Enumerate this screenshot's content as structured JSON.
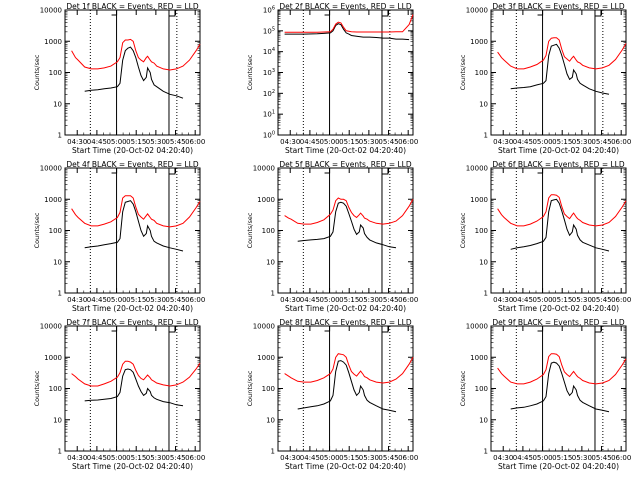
{
  "figure": {
    "panel_count": 9,
    "layout": "3x3 grid",
    "background_color": "#ffffff",
    "frame_color": "#000000"
  },
  "colors": {
    "events": "#000000",
    "lld": "#ff0000",
    "markers": "#000000"
  },
  "shared_axes": {
    "xlabel": "Start Time (20-Oct-02 04:20:40)",
    "ylabel": "Counts/sec",
    "x_tick_labels": [
      "04:30",
      "04:45",
      "05:00",
      "05:15",
      "05:30",
      "05:45",
      "06:00"
    ],
    "x_tick_minutes": [
      9.33,
      24.33,
      39.33,
      54.33,
      69.33,
      84.33,
      99.33
    ],
    "xlim_minutes": [
      0,
      103
    ],
    "yscale": "log",
    "grid": false
  },
  "markers": {
    "dotted_line_times": [
      "04:40",
      "05:46"
    ],
    "solid_line_times": [
      "05:00",
      "05:40"
    ],
    "bracket_labels": [
      "05:00 to 05:40"
    ],
    "bracket_style": "small square corner tick"
  },
  "chart_data": [
    {
      "type": "line",
      "title": "Det 1f BLACK = Events, RED = LLD",
      "ylim": [
        1,
        10000
      ],
      "y_tick_labels": [
        "1",
        "10",
        "100",
        "1000",
        "10000"
      ],
      "x_minutes": [
        5,
        8,
        10,
        15,
        20,
        25,
        30,
        35,
        40,
        42,
        44,
        46,
        48,
        50,
        52,
        54,
        56,
        58,
        60,
        62,
        63,
        65,
        66,
        68,
        70,
        75,
        80,
        85,
        90,
        95,
        100,
        103
      ],
      "series": [
        {
          "name": "BLACK = Events",
          "color": "#000000",
          "values": [
            null,
            null,
            null,
            25,
            27,
            28,
            30,
            32,
            35,
            45,
            250,
            500,
            600,
            650,
            500,
            300,
            150,
            80,
            55,
            70,
            140,
            100,
            60,
            40,
            35,
            25,
            20,
            18,
            15,
            null,
            null,
            null
          ]
        },
        {
          "name": "RED = LLD",
          "color": "#ff0000",
          "values": [
            500,
            300,
            250,
            150,
            130,
            130,
            140,
            160,
            220,
            300,
            900,
            1100,
            1100,
            1150,
            1000,
            500,
            300,
            250,
            220,
            300,
            330,
            250,
            220,
            200,
            160,
            130,
            120,
            130,
            160,
            250,
            500,
            800
          ]
        }
      ]
    },
    {
      "type": "line",
      "title": "Det 2f BLACK = Events, RED = LLD",
      "ylim": [
        1,
        1000000
      ],
      "y_tick_labels": [
        "10^0",
        "10^1",
        "10^2",
        "10^3",
        "10^4",
        "10^5",
        "10^6"
      ],
      "x_minutes": [
        5,
        10,
        20,
        30,
        35,
        40,
        42,
        44,
        46,
        48,
        50,
        52,
        54,
        56,
        60,
        65,
        70,
        75,
        80,
        85,
        90,
        95,
        100,
        103
      ],
      "series": [
        {
          "name": "BLACK = Events",
          "color": "#000000",
          "values": [
            70000,
            70000,
            70000,
            72000,
            75000,
            80000,
            100000,
            180000,
            220000,
            200000,
            120000,
            80000,
            70000,
            60000,
            55000,
            50000,
            50000,
            48000,
            45000,
            45000,
            40000,
            40000,
            38000,
            null
          ]
        },
        {
          "name": "RED = LLD",
          "color": "#ff0000",
          "values": [
            85000,
            85000,
            85000,
            85000,
            88000,
            90000,
            120000,
            210000,
            260000,
            240000,
            150000,
            100000,
            95000,
            90000,
            88000,
            88000,
            88000,
            88000,
            88000,
            88000,
            90000,
            90000,
            200000,
            600000
          ]
        }
      ]
    },
    {
      "type": "line",
      "title": "Det 3f BLACK = Events, RED = LLD",
      "ylim": [
        1,
        10000
      ],
      "y_tick_labels": [
        "1",
        "10",
        "100",
        "1000",
        "10000"
      ],
      "x_minutes": [
        5,
        8,
        10,
        15,
        20,
        25,
        30,
        35,
        40,
        42,
        44,
        46,
        48,
        50,
        52,
        54,
        56,
        58,
        60,
        62,
        63,
        65,
        66,
        68,
        70,
        75,
        80,
        85,
        90,
        95,
        100,
        103
      ],
      "series": [
        {
          "name": "BLACK = Events",
          "color": "#000000",
          "values": [
            null,
            null,
            null,
            30,
            32,
            33,
            35,
            40,
            45,
            55,
            350,
            700,
            750,
            800,
            600,
            350,
            180,
            90,
            60,
            70,
            120,
            90,
            60,
            45,
            40,
            30,
            25,
            22,
            20,
            null,
            null,
            null
          ]
        },
        {
          "name": "RED = LLD",
          "color": "#ff0000",
          "values": [
            450,
            300,
            250,
            160,
            130,
            130,
            150,
            180,
            250,
            350,
            1000,
            1250,
            1300,
            1300,
            1100,
            550,
            320,
            270,
            230,
            300,
            330,
            250,
            220,
            200,
            170,
            140,
            130,
            140,
            170,
            260,
            520,
            850
          ]
        }
      ]
    },
    {
      "type": "line",
      "title": "Det 4f BLACK = Events, RED = LLD",
      "ylim": [
        1,
        10000
      ],
      "y_tick_labels": [
        "1",
        "10",
        "100",
        "1000",
        "10000"
      ],
      "x_minutes": [
        5,
        8,
        10,
        15,
        20,
        25,
        30,
        35,
        40,
        42,
        44,
        46,
        48,
        50,
        52,
        54,
        56,
        58,
        60,
        62,
        63,
        65,
        66,
        68,
        70,
        75,
        80,
        85,
        90,
        95,
        100,
        103
      ],
      "series": [
        {
          "name": "BLACK = Events",
          "color": "#000000",
          "values": [
            null,
            null,
            null,
            28,
            30,
            32,
            35,
            38,
            42,
            55,
            400,
            800,
            850,
            900,
            700,
            400,
            200,
            100,
            65,
            80,
            140,
            100,
            65,
            45,
            40,
            32,
            28,
            25,
            22,
            null,
            null,
            null
          ]
        },
        {
          "name": "RED = LLD",
          "color": "#ff0000",
          "values": [
            500,
            320,
            260,
            170,
            140,
            140,
            160,
            190,
            260,
            380,
            1100,
            1300,
            1300,
            1300,
            1100,
            560,
            330,
            270,
            230,
            300,
            340,
            260,
            230,
            210,
            170,
            140,
            130,
            140,
            170,
            270,
            540,
            850
          ]
        }
      ]
    },
    {
      "type": "line",
      "title": "Det 5f BLACK = Events, RED = LLD",
      "ylim": [
        1,
        10000
      ],
      "y_tick_labels": [
        "1",
        "10",
        "100",
        "1000",
        "10000"
      ],
      "x_minutes": [
        5,
        8,
        10,
        15,
        20,
        25,
        30,
        35,
        40,
        42,
        44,
        46,
        48,
        50,
        52,
        54,
        56,
        58,
        60,
        62,
        63,
        65,
        66,
        68,
        70,
        75,
        80,
        85,
        90,
        95,
        100,
        103
      ],
      "series": [
        {
          "name": "BLACK = Events",
          "color": "#000000",
          "values": [
            null,
            null,
            null,
            45,
            48,
            50,
            52,
            55,
            65,
            90,
            400,
            750,
            800,
            750,
            600,
            350,
            200,
            110,
            75,
            90,
            150,
            120,
            80,
            60,
            50,
            40,
            35,
            30,
            28,
            null,
            null,
            null
          ]
        },
        {
          "name": "RED = LLD",
          "color": "#ff0000",
          "values": [
            300,
            250,
            230,
            170,
            160,
            160,
            180,
            220,
            330,
            450,
            900,
            1100,
            1000,
            1000,
            900,
            550,
            380,
            300,
            260,
            320,
            360,
            290,
            250,
            230,
            200,
            170,
            160,
            170,
            200,
            300,
            600,
            1000
          ]
        }
      ]
    },
    {
      "type": "line",
      "title": "Det 6f BLACK = Events, RED = LLD",
      "ylim": [
        1,
        10000
      ],
      "y_tick_labels": [
        "1",
        "10",
        "100",
        "1000",
        "10000"
      ],
      "x_minutes": [
        5,
        8,
        10,
        15,
        20,
        25,
        30,
        35,
        40,
        42,
        44,
        46,
        48,
        50,
        52,
        54,
        56,
        58,
        60,
        62,
        63,
        65,
        66,
        68,
        70,
        75,
        80,
        85,
        90,
        95,
        100,
        103
      ],
      "series": [
        {
          "name": "BLACK = Events",
          "color": "#000000",
          "values": [
            null,
            null,
            null,
            25,
            28,
            30,
            33,
            38,
            45,
            60,
            400,
            900,
            950,
            1000,
            750,
            420,
            220,
            110,
            70,
            90,
            150,
            110,
            70,
            50,
            42,
            34,
            28,
            25,
            22,
            null,
            null,
            null
          ]
        },
        {
          "name": "RED = LLD",
          "color": "#ff0000",
          "values": [
            500,
            320,
            260,
            170,
            140,
            140,
            160,
            200,
            280,
            400,
            1100,
            1400,
            1400,
            1350,
            1150,
            580,
            340,
            280,
            240,
            320,
            360,
            270,
            240,
            210,
            180,
            150,
            140,
            150,
            180,
            280,
            560,
            900
          ]
        }
      ]
    },
    {
      "type": "line",
      "title": "Det 7f BLACK = Events, RED = LLD",
      "ylim": [
        1,
        10000
      ],
      "y_tick_labels": [
        "1",
        "10",
        "100",
        "1000",
        "10000"
      ],
      "x_minutes": [
        5,
        8,
        10,
        15,
        20,
        25,
        30,
        35,
        40,
        42,
        44,
        46,
        48,
        50,
        52,
        54,
        56,
        58,
        60,
        62,
        63,
        65,
        66,
        68,
        70,
        75,
        80,
        85,
        90,
        95,
        100,
        103
      ],
      "series": [
        {
          "name": "BLACK = Events",
          "color": "#000000",
          "values": [
            null,
            null,
            null,
            40,
            42,
            43,
            45,
            48,
            55,
            75,
            250,
            400,
            420,
            400,
            330,
            200,
            120,
            80,
            60,
            70,
            100,
            80,
            60,
            50,
            45,
            38,
            35,
            30,
            28,
            null,
            null,
            null
          ]
        },
        {
          "name": "RED = LLD",
          "color": "#ff0000",
          "values": [
            300,
            240,
            200,
            140,
            120,
            120,
            140,
            170,
            230,
            320,
            600,
            750,
            750,
            700,
            600,
            380,
            260,
            210,
            190,
            240,
            270,
            220,
            190,
            170,
            150,
            130,
            120,
            130,
            160,
            230,
            420,
            650
          ]
        }
      ]
    },
    {
      "type": "line",
      "title": "Det 8f BLACK = Events, RED = LLD",
      "ylim": [
        1,
        10000
      ],
      "y_tick_labels": [
        "1",
        "10",
        "100",
        "1000",
        "10000"
      ],
      "x_minutes": [
        5,
        8,
        10,
        15,
        20,
        25,
        30,
        35,
        40,
        42,
        44,
        46,
        48,
        50,
        52,
        54,
        56,
        58,
        60,
        62,
        63,
        65,
        66,
        68,
        70,
        75,
        80,
        85,
        90,
        95,
        100,
        103
      ],
      "series": [
        {
          "name": "BLACK = Events",
          "color": "#000000",
          "values": [
            null,
            null,
            null,
            22,
            24,
            26,
            28,
            32,
            40,
            60,
            350,
            750,
            780,
            700,
            560,
            320,
            170,
            90,
            60,
            75,
            120,
            90,
            60,
            42,
            36,
            28,
            22,
            20,
            18,
            null,
            null,
            null
          ]
        },
        {
          "name": "RED = LLD",
          "color": "#ff0000",
          "values": [
            300,
            250,
            220,
            170,
            160,
            160,
            180,
            220,
            300,
            420,
            1000,
            1300,
            1250,
            1200,
            1000,
            560,
            350,
            290,
            250,
            320,
            360,
            280,
            240,
            220,
            190,
            160,
            150,
            160,
            200,
            300,
            600,
            1000
          ]
        }
      ]
    },
    {
      "type": "line",
      "title": "Det 9f BLACK = Events, RED = LLD",
      "ylim": [
        1,
        10000
      ],
      "y_tick_labels": [
        "1",
        "10",
        "100",
        "1000",
        "10000"
      ],
      "x_minutes": [
        5,
        8,
        10,
        15,
        20,
        25,
        30,
        35,
        40,
        42,
        44,
        46,
        48,
        50,
        52,
        54,
        56,
        58,
        60,
        62,
        63,
        65,
        66,
        68,
        70,
        75,
        80,
        85,
        90,
        95,
        100,
        103
      ],
      "series": [
        {
          "name": "BLACK = Events",
          "color": "#000000",
          "values": [
            null,
            null,
            null,
            22,
            24,
            25,
            28,
            32,
            40,
            55,
            300,
            650,
            700,
            650,
            520,
            300,
            160,
            85,
            60,
            75,
            120,
            90,
            60,
            42,
            36,
            28,
            22,
            20,
            18,
            null,
            null,
            null
          ]
        },
        {
          "name": "RED = LLD",
          "color": "#ff0000",
          "values": [
            450,
            300,
            250,
            160,
            140,
            140,
            160,
            200,
            280,
            400,
            1050,
            1300,
            1300,
            1250,
            1050,
            560,
            340,
            280,
            240,
            310,
            350,
            270,
            240,
            210,
            180,
            150,
            140,
            150,
            180,
            280,
            560,
            900
          ]
        }
      ]
    }
  ]
}
